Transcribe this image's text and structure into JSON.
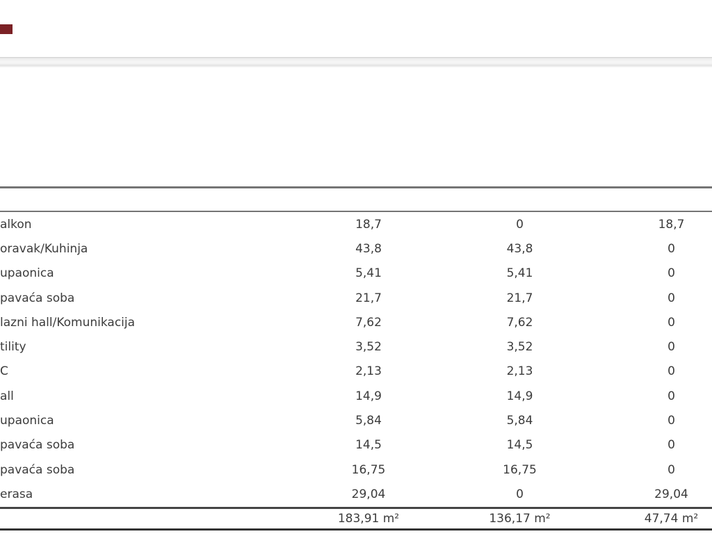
{
  "page": {
    "background": "#ffffff",
    "marker_color": "#7b2125",
    "divider_color": "#e2e2e2",
    "rule_color_header": "#757575",
    "rule_color_footer": "#333333",
    "text_color": "#3c3c3c"
  },
  "table": {
    "rows": [
      {
        "name": "alkon",
        "v1": "18,7",
        "v2": "0",
        "v3": "18,7"
      },
      {
        "name": "oravak/Kuhinja",
        "v1": "43,8",
        "v2": "43,8",
        "v3": "0"
      },
      {
        "name": "upaonica",
        "v1": "5,41",
        "v2": "5,41",
        "v3": "0"
      },
      {
        "name": "pavaća soba",
        "v1": "21,7",
        "v2": "21,7",
        "v3": "0"
      },
      {
        "name": "lazni hall/Komunikacija",
        "v1": "7,62",
        "v2": "7,62",
        "v3": "0"
      },
      {
        "name": "tility",
        "v1": "3,52",
        "v2": "3,52",
        "v3": "0"
      },
      {
        "name": "C",
        "v1": "2,13",
        "v2": "2,13",
        "v3": "0"
      },
      {
        "name": "all",
        "v1": "14,9",
        "v2": "14,9",
        "v3": "0"
      },
      {
        "name": "upaonica2",
        "v1": "5,84",
        "v2": "5,84",
        "v3": "0"
      },
      {
        "name": "pavaća soba2",
        "v1": "14,5",
        "v2": "14,5",
        "v3": "0"
      },
      {
        "name": "pavaća soba3",
        "v1": "16,75",
        "v2": "16,75",
        "v3": "0"
      },
      {
        "name": "erasa",
        "v1": "29,04",
        "v2": "0",
        "v3": "29,04"
      }
    ],
    "row_names_visible": [
      "alkon",
      "oravak/Kuhinja",
      "upaonica",
      "pavaća soba",
      "lazni hall/Komunikacija",
      "tility",
      "C",
      "all",
      "upaonica",
      "pavaća soba",
      "pavaća soba",
      "erasa"
    ],
    "totals": {
      "t1": "183,91 m²",
      "t2": "136,17 m²",
      "t3": "47,74 m²"
    }
  }
}
